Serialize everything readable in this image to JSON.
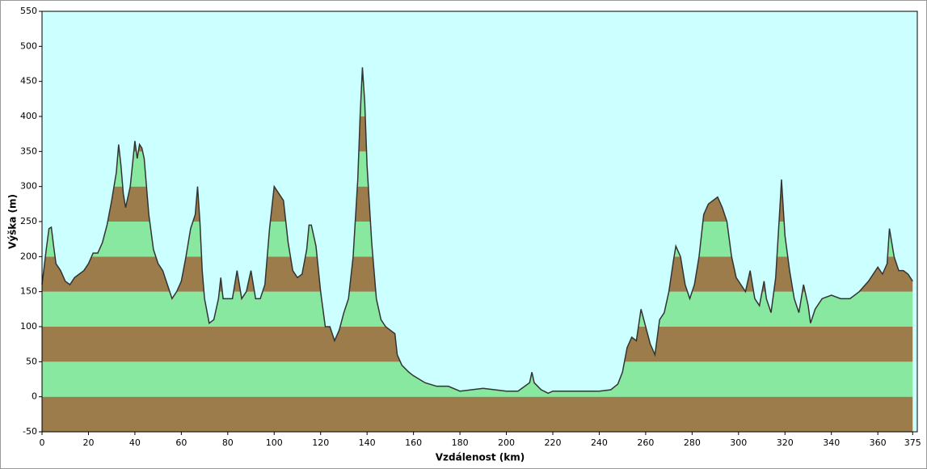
{
  "chart_data": {
    "type": "area",
    "xlabel": "Vzdálenost  (km)",
    "ylabel": "Výška (m)",
    "x": [
      0,
      2,
      3,
      4,
      5,
      6,
      8,
      10,
      12,
      14,
      16,
      18,
      20,
      22,
      24,
      26,
      28,
      30,
      32,
      33,
      34,
      35,
      36,
      38,
      40,
      41,
      42,
      43,
      44,
      45,
      46,
      48,
      50,
      52,
      54,
      56,
      58,
      60,
      62,
      64,
      66,
      67,
      68,
      69,
      70,
      72,
      74,
      76,
      77,
      78,
      80,
      82,
      84,
      86,
      88,
      90,
      92,
      94,
      96,
      98,
      100,
      102,
      104,
      106,
      108,
      110,
      112,
      114,
      115,
      116,
      118,
      120,
      122,
      124,
      126,
      128,
      130,
      132,
      134,
      136,
      137,
      138,
      139,
      140,
      142,
      144,
      146,
      148,
      150,
      152,
      153,
      155,
      158,
      160,
      165,
      170,
      175,
      180,
      185,
      190,
      195,
      200,
      205,
      210,
      211,
      212,
      215,
      218,
      220,
      225,
      230,
      235,
      240,
      245,
      248,
      250,
      252,
      254,
      256,
      258,
      260,
      262,
      264,
      266,
      268,
      270,
      272,
      273,
      275,
      277,
      279,
      281,
      283,
      285,
      287,
      289,
      291,
      293,
      295,
      297,
      299,
      301,
      303,
      305,
      307,
      309,
      311,
      312,
      314,
      316,
      318,
      318.5,
      320,
      322,
      324,
      326,
      328,
      330,
      331,
      333,
      336,
      340,
      344,
      348,
      352,
      356,
      360,
      362,
      364,
      365,
      367,
      369,
      371,
      373,
      375
    ],
    "values": [
      160,
      215,
      240,
      242,
      215,
      190,
      180,
      165,
      160,
      170,
      175,
      180,
      190,
      205,
      205,
      220,
      245,
      280,
      320,
      360,
      330,
      290,
      270,
      300,
      365,
      340,
      360,
      355,
      340,
      300,
      260,
      210,
      190,
      180,
      160,
      140,
      150,
      165,
      200,
      240,
      260,
      300,
      250,
      180,
      140,
      105,
      110,
      140,
      170,
      140,
      140,
      140,
      180,
      140,
      150,
      180,
      140,
      140,
      160,
      240,
      300,
      290,
      280,
      220,
      180,
      170,
      175,
      210,
      245,
      245,
      215,
      150,
      100,
      100,
      80,
      95,
      120,
      140,
      200,
      310,
      400,
      470,
      420,
      330,
      220,
      140,
      110,
      100,
      95,
      90,
      60,
      45,
      35,
      30,
      20,
      15,
      15,
      8,
      10,
      12,
      10,
      8,
      8,
      20,
      35,
      20,
      10,
      5,
      8,
      8,
      8,
      8,
      8,
      10,
      18,
      35,
      70,
      85,
      80,
      125,
      100,
      75,
      60,
      110,
      120,
      150,
      195,
      215,
      200,
      160,
      140,
      160,
      200,
      260,
      275,
      280,
      285,
      270,
      250,
      200,
      170,
      160,
      150,
      180,
      140,
      130,
      165,
      140,
      120,
      170,
      280,
      310,
      230,
      180,
      140,
      120,
      160,
      130,
      105,
      125,
      140,
      145,
      140,
      140,
      150,
      165,
      185,
      175,
      190,
      240,
      200,
      180,
      180,
      175,
      165
    ],
    "xlim": [
      0,
      377
    ],
    "ylim": [
      -50,
      550
    ],
    "xticks": [
      0,
      20,
      40,
      60,
      80,
      100,
      120,
      140,
      160,
      180,
      200,
      220,
      240,
      260,
      280,
      300,
      320,
      340,
      360,
      375
    ],
    "yticks": [
      -50,
      0,
      50,
      100,
      150,
      200,
      250,
      300,
      350,
      400,
      450,
      500,
      550
    ],
    "band_colors": [
      "#9c7c4b",
      "#88e8a0"
    ],
    "background": "#ccffff",
    "color": "#333333"
  }
}
